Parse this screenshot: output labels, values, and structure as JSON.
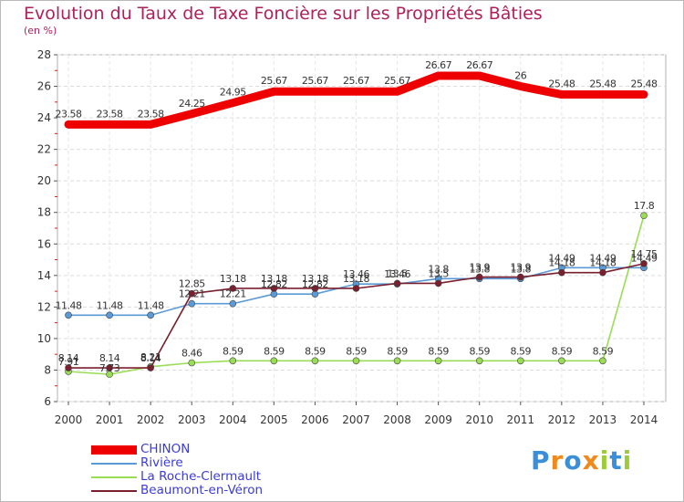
{
  "chart_data": {
    "type": "line",
    "title": "Evolution du Taux de Taxe Foncière sur les Propriétés Bâties",
    "ylabel": "(en %)",
    "xlabel": "",
    "ylim": [
      6,
      28
    ],
    "yticks": [
      "6",
      "8",
      "10",
      "12",
      "14",
      "16",
      "18",
      "20",
      "22",
      "24",
      "26",
      "28"
    ],
    "categories": [
      "2000",
      "2001",
      "2002",
      "2003",
      "2004",
      "2005",
      "2006",
      "2007",
      "2008",
      "2009",
      "2010",
      "2011",
      "2012",
      "2013",
      "2014"
    ],
    "series": [
      {
        "name": "CHINON",
        "color": "#ee0000",
        "values": [
          23.58,
          23.58,
          23.58,
          24.25,
          24.95,
          25.67,
          25.67,
          25.67,
          25.67,
          26.67,
          26.67,
          26,
          25.48,
          25.48,
          25.48
        ],
        "labels": [
          "23.58",
          "23.58",
          "23.58",
          "24.25",
          "24.95",
          "25.67",
          "25.67",
          "25.67",
          "25.67",
          "26.67",
          "26.67",
          "26",
          "25.48",
          "25.48",
          "25.48"
        ]
      },
      {
        "name": "Rivière",
        "color": "#5a9ad6",
        "values": [
          11.48,
          11.48,
          11.48,
          12.21,
          12.21,
          12.82,
          12.82,
          13.46,
          13.46,
          13.8,
          13.8,
          13.8,
          14.49,
          14.49,
          14.49
        ],
        "labels": [
          "11.48",
          "11.48",
          "11.48",
          "12.21",
          "12.21",
          "12.82",
          "12.82",
          "13.46",
          "13.46",
          "13.8",
          "13.8",
          "13.8",
          "14.49",
          "14.49",
          "14.49"
        ]
      },
      {
        "name": "La Roche-Clermault",
        "color": "#99dd55",
        "values": [
          7.91,
          7.73,
          8.21,
          8.46,
          8.59,
          8.59,
          8.59,
          8.59,
          8.59,
          8.59,
          8.59,
          8.59,
          8.59,
          8.59,
          17.8
        ],
        "labels": [
          "7.91",
          "7.73",
          "8.21",
          "8.46",
          "8.59",
          "8.59",
          "8.59",
          "8.59",
          "8.59",
          "8.59",
          "8.59",
          "8.59",
          "8.59",
          "8.59",
          "17.8"
        ]
      },
      {
        "name": "Beaumont-en-Véron",
        "color": "#7a1f2e",
        "values": [
          8.14,
          8.14,
          8.14,
          12.85,
          13.18,
          13.18,
          13.18,
          13.18,
          13.5,
          13.5,
          13.9,
          13.9,
          14.18,
          14.18,
          14.75
        ],
        "labels": [
          "8.14",
          "8.14",
          "8.14",
          "12.85",
          "13.18",
          "13.18",
          "13.18",
          "13.18",
          "13.5",
          "13.5",
          "13.9",
          "13.9",
          "14.18",
          "14.18",
          "14.75"
        ]
      }
    ]
  },
  "legend": {
    "items": [
      "CHINON",
      "Rivière",
      "La Roche-Clermault",
      "Beaumont-en-Véron"
    ]
  },
  "branding": {
    "logo_text": "Proxiti"
  }
}
